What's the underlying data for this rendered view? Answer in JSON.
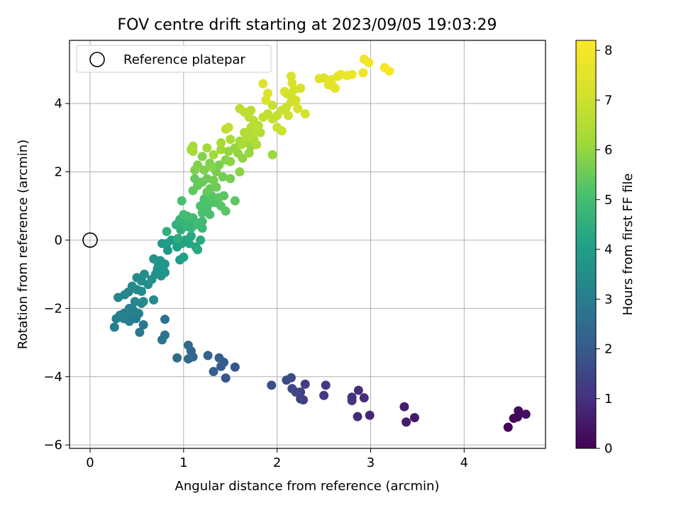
{
  "chart_data": {
    "type": "scatter",
    "title": "FOV centre drift starting at 2023/09/05 19:03:29",
    "xlabel": "Angular distance from reference (arcmin)",
    "ylabel": "Rotation from reference (arcmin)",
    "xlim": [
      -0.22,
      4.87
    ],
    "ylim": [
      -6.1,
      5.85
    ],
    "xticks": [
      0,
      1,
      2,
      3,
      4
    ],
    "yticks": [
      -6,
      -4,
      -2,
      0,
      2,
      4
    ],
    "grid": true,
    "legend": {
      "placement": "top-left",
      "entries": [
        "Reference platepar"
      ]
    },
    "reference_point": {
      "x": 0,
      "y": 0,
      "label": "Reference platepar"
    },
    "colorbar": {
      "label": "Hours from first FF file",
      "colormap": "viridis",
      "range": [
        0,
        8.2
      ],
      "ticks": [
        0,
        1,
        2,
        3,
        4,
        5,
        6,
        7,
        8
      ]
    },
    "series": [
      {
        "color_by": "hours",
        "points": [
          [
            4.47,
            -5.48,
            0.0
          ],
          [
            4.53,
            -5.22,
            0.1
          ],
          [
            4.57,
            -5.18,
            0.15
          ],
          [
            4.58,
            -5.0,
            0.2
          ],
          [
            4.66,
            -5.1,
            0.3
          ],
          [
            3.47,
            -5.2,
            0.5
          ],
          [
            3.38,
            -5.33,
            0.55
          ],
          [
            3.36,
            -4.88,
            0.6
          ],
          [
            2.99,
            -5.13,
            0.8
          ],
          [
            2.86,
            -5.17,
            0.85
          ],
          [
            2.93,
            -4.62,
            0.9
          ],
          [
            2.87,
            -4.4,
            0.95
          ],
          [
            2.8,
            -4.6,
            1.0
          ],
          [
            2.8,
            -4.7,
            1.05
          ],
          [
            2.52,
            -4.25,
            1.2
          ],
          [
            2.5,
            -4.55,
            1.25
          ],
          [
            2.3,
            -4.22,
            1.3
          ],
          [
            2.28,
            -4.68,
            1.35
          ],
          [
            2.25,
            -4.45,
            1.4
          ],
          [
            2.25,
            -4.65,
            1.45
          ],
          [
            2.2,
            -4.45,
            1.5
          ],
          [
            2.16,
            -4.35,
            1.55
          ],
          [
            2.15,
            -4.03,
            1.6
          ],
          [
            2.1,
            -4.1,
            1.65
          ],
          [
            1.94,
            -4.25,
            1.7
          ],
          [
            1.55,
            -3.72,
            1.9
          ],
          [
            1.45,
            -4.04,
            1.95
          ],
          [
            1.43,
            -3.58,
            2.0
          ],
          [
            1.4,
            -3.7,
            2.05
          ],
          [
            1.38,
            -3.45,
            2.1
          ],
          [
            1.32,
            -3.85,
            2.15
          ],
          [
            1.26,
            -3.38,
            2.2
          ],
          [
            1.1,
            -3.42,
            2.3
          ],
          [
            1.08,
            -3.25,
            2.35
          ],
          [
            1.05,
            -3.48,
            2.4
          ],
          [
            1.05,
            -3.08,
            2.45
          ],
          [
            0.93,
            -3.45,
            2.5
          ],
          [
            0.8,
            -2.32,
            2.7
          ],
          [
            0.8,
            -2.78,
            2.75
          ],
          [
            0.77,
            -2.92,
            2.8
          ],
          [
            0.57,
            -2.48,
            2.85
          ],
          [
            0.53,
            -2.7,
            2.9
          ],
          [
            0.49,
            -2.3,
            2.95
          ],
          [
            0.45,
            -2.25,
            3.0
          ],
          [
            0.42,
            -2.38,
            3.0
          ],
          [
            0.4,
            -2.1,
            3.05
          ],
          [
            0.36,
            -2.15,
            3.05
          ],
          [
            0.32,
            -2.2,
            3.1
          ],
          [
            0.28,
            -2.3,
            3.1
          ],
          [
            0.26,
            -2.55,
            3.1
          ],
          [
            0.46,
            -2.05,
            3.15
          ],
          [
            0.52,
            -2.15,
            3.15
          ],
          [
            0.36,
            -2.3,
            3.15
          ],
          [
            0.42,
            -2.0,
            3.2
          ],
          [
            0.55,
            -1.85,
            3.2
          ],
          [
            0.48,
            -1.8,
            3.25
          ],
          [
            0.3,
            -1.68,
            3.25
          ],
          [
            0.37,
            -1.6,
            3.3
          ],
          [
            0.41,
            -1.52,
            3.3
          ],
          [
            0.45,
            -1.35,
            3.35
          ],
          [
            0.5,
            -1.45,
            3.35
          ],
          [
            0.55,
            -1.5,
            3.4
          ],
          [
            0.57,
            -1.8,
            3.4
          ],
          [
            0.68,
            -1.75,
            3.45
          ],
          [
            0.5,
            -1.1,
            3.45
          ],
          [
            0.55,
            -1.2,
            3.5
          ],
          [
            0.58,
            -1.0,
            3.5
          ],
          [
            0.62,
            -1.3,
            3.55
          ],
          [
            0.66,
            -1.15,
            3.55
          ],
          [
            0.7,
            -1.0,
            3.6
          ],
          [
            0.72,
            -0.85,
            3.6
          ],
          [
            0.76,
            -1.05,
            3.65
          ],
          [
            0.8,
            -0.95,
            3.65
          ],
          [
            0.68,
            -0.55,
            3.7
          ],
          [
            0.75,
            -0.6,
            3.7
          ],
          [
            0.73,
            -0.72,
            3.75
          ],
          [
            0.78,
            -0.85,
            3.75
          ],
          [
            0.8,
            -0.7,
            3.8
          ],
          [
            0.83,
            -0.3,
            3.85
          ],
          [
            0.77,
            -0.1,
            3.9
          ],
          [
            0.82,
            -0.1,
            3.95
          ],
          [
            0.87,
            0.0,
            4.0
          ],
          [
            0.93,
            -0.2,
            4.05
          ],
          [
            0.96,
            -0.58,
            4.05
          ],
          [
            1.0,
            -0.5,
            4.1
          ],
          [
            0.98,
            -0.1,
            4.15
          ],
          [
            1.02,
            0.0,
            4.2
          ],
          [
            1.06,
            -0.1,
            4.25
          ],
          [
            1.08,
            0.12,
            4.3
          ],
          [
            1.13,
            -0.2,
            4.3
          ],
          [
            1.15,
            -0.28,
            4.35
          ],
          [
            1.18,
            0.0,
            4.4
          ],
          [
            0.94,
            0.05,
            4.45
          ],
          [
            0.97,
            0.3,
            4.5
          ],
          [
            1.0,
            0.45,
            4.55
          ],
          [
            0.82,
            0.25,
            4.55
          ],
          [
            0.92,
            0.45,
            4.6
          ],
          [
            0.96,
            0.6,
            4.65
          ],
          [
            1.03,
            0.4,
            4.7
          ],
          [
            1.08,
            0.35,
            4.7
          ],
          [
            1.12,
            0.5,
            4.75
          ],
          [
            1.05,
            0.6,
            4.75
          ],
          [
            1.16,
            0.5,
            4.8
          ],
          [
            1.2,
            0.35,
            4.85
          ],
          [
            1.1,
            0.65,
            4.85
          ],
          [
            1.15,
            0.45,
            4.9
          ],
          [
            1.2,
            0.55,
            4.9
          ],
          [
            1.04,
            0.7,
            4.95
          ],
          [
            1.0,
            0.75,
            5.0
          ],
          [
            0.98,
            1.15,
            5.05
          ],
          [
            1.2,
            0.8,
            5.05
          ],
          [
            1.25,
            0.95,
            5.1
          ],
          [
            1.28,
            0.75,
            5.1
          ],
          [
            1.18,
            1.0,
            5.15
          ],
          [
            1.22,
            1.2,
            5.15
          ],
          [
            1.3,
            1.1,
            5.2
          ],
          [
            1.35,
            1.1,
            5.2
          ],
          [
            1.3,
            1.3,
            5.25
          ],
          [
            1.4,
            1.0,
            5.25
          ],
          [
            1.45,
            0.85,
            5.3
          ],
          [
            1.43,
            1.3,
            5.3
          ],
          [
            1.38,
            1.25,
            5.35
          ],
          [
            1.55,
            1.15,
            5.35
          ],
          [
            1.25,
            1.4,
            5.4
          ],
          [
            1.1,
            1.45,
            5.4
          ],
          [
            1.15,
            1.6,
            5.45
          ],
          [
            1.12,
            1.8,
            5.45
          ],
          [
            1.2,
            1.7,
            5.5
          ],
          [
            1.28,
            1.5,
            5.5
          ],
          [
            1.35,
            1.55,
            5.55
          ],
          [
            1.25,
            1.8,
            5.55
          ],
          [
            1.32,
            1.75,
            5.6
          ],
          [
            1.42,
            1.85,
            5.6
          ],
          [
            1.35,
            2.0,
            5.65
          ],
          [
            1.5,
            1.8,
            5.65
          ],
          [
            1.38,
            2.2,
            5.7
          ],
          [
            1.28,
            2.25,
            5.7
          ],
          [
            1.22,
            2.05,
            5.75
          ],
          [
            1.12,
            2.05,
            5.75
          ],
          [
            1.15,
            2.2,
            5.8
          ],
          [
            1.2,
            2.45,
            5.8
          ],
          [
            1.3,
            2.15,
            5.85
          ],
          [
            1.45,
            2.35,
            5.85
          ],
          [
            1.5,
            2.3,
            5.9
          ],
          [
            1.6,
            2.0,
            5.9
          ],
          [
            1.63,
            2.4,
            5.95
          ],
          [
            1.58,
            2.55,
            5.95
          ],
          [
            1.48,
            2.6,
            6.0
          ],
          [
            1.55,
            2.7,
            6.0
          ],
          [
            1.7,
            2.55,
            6.05
          ],
          [
            1.72,
            2.75,
            6.05
          ],
          [
            1.95,
            2.5,
            6.1
          ],
          [
            1.65,
            2.85,
            6.1
          ],
          [
            1.6,
            2.9,
            6.15
          ],
          [
            1.4,
            2.65,
            6.15
          ],
          [
            1.32,
            2.5,
            6.2
          ],
          [
            1.25,
            2.7,
            6.2
          ],
          [
            1.1,
            2.6,
            6.25
          ],
          [
            1.1,
            2.75,
            6.25
          ],
          [
            1.08,
            2.65,
            6.3
          ],
          [
            1.4,
            2.85,
            6.3
          ],
          [
            1.5,
            2.95,
            6.35
          ],
          [
            1.62,
            2.8,
            6.35
          ],
          [
            1.68,
            3.0,
            6.4
          ],
          [
            1.75,
            2.95,
            6.4
          ],
          [
            1.78,
            2.8,
            6.45
          ],
          [
            1.82,
            3.15,
            6.45
          ],
          [
            1.7,
            3.05,
            6.5
          ],
          [
            1.65,
            3.15,
            6.5
          ],
          [
            1.72,
            3.3,
            6.55
          ],
          [
            1.8,
            3.35,
            6.55
          ],
          [
            1.78,
            3.2,
            6.6
          ],
          [
            1.75,
            3.5,
            6.6
          ],
          [
            1.7,
            3.6,
            6.65
          ],
          [
            1.72,
            3.8,
            6.65
          ],
          [
            1.65,
            3.75,
            6.7
          ],
          [
            1.6,
            3.85,
            6.7
          ],
          [
            1.45,
            3.25,
            6.75
          ],
          [
            1.48,
            3.3,
            6.75
          ],
          [
            1.85,
            3.6,
            6.8
          ],
          [
            1.9,
            3.7,
            6.8
          ],
          [
            1.95,
            3.55,
            6.85
          ],
          [
            2.0,
            3.65,
            6.85
          ],
          [
            1.95,
            3.95,
            6.9
          ],
          [
            2.05,
            3.8,
            6.9
          ],
          [
            2.1,
            3.9,
            6.95
          ],
          [
            2.0,
            3.3,
            6.95
          ],
          [
            2.05,
            3.2,
            7.0
          ],
          [
            2.12,
            3.65,
            7.0
          ],
          [
            2.15,
            4.05,
            7.05
          ],
          [
            2.1,
            4.3,
            7.05
          ],
          [
            2.15,
            4.2,
            7.1
          ],
          [
            2.2,
            4.1,
            7.1
          ],
          [
            2.08,
            4.35,
            7.15
          ],
          [
            2.22,
            3.85,
            7.15
          ],
          [
            2.3,
            3.7,
            7.2
          ],
          [
            2.18,
            4.4,
            7.2
          ],
          [
            2.25,
            4.45,
            7.25
          ],
          [
            2.16,
            4.6,
            7.25
          ],
          [
            2.15,
            4.8,
            7.3
          ],
          [
            1.88,
            4.1,
            7.3
          ],
          [
            1.9,
            4.3,
            7.35
          ],
          [
            1.85,
            4.58,
            7.35
          ],
          [
            2.45,
            4.73,
            7.4
          ],
          [
            2.5,
            4.75,
            7.45
          ],
          [
            2.55,
            4.55,
            7.5
          ],
          [
            2.6,
            4.5,
            7.5
          ],
          [
            2.62,
            4.45,
            7.55
          ],
          [
            2.58,
            4.7,
            7.55
          ],
          [
            2.65,
            4.8,
            7.6
          ],
          [
            2.68,
            4.85,
            7.65
          ],
          [
            2.75,
            4.82,
            7.7
          ],
          [
            2.8,
            4.85,
            7.75
          ],
          [
            2.92,
            4.9,
            7.8
          ],
          [
            2.93,
            5.3,
            7.85
          ],
          [
            2.98,
            5.2,
            7.9
          ],
          [
            3.15,
            5.05,
            8.0
          ],
          [
            3.2,
            4.95,
            8.1
          ]
        ]
      }
    ]
  }
}
